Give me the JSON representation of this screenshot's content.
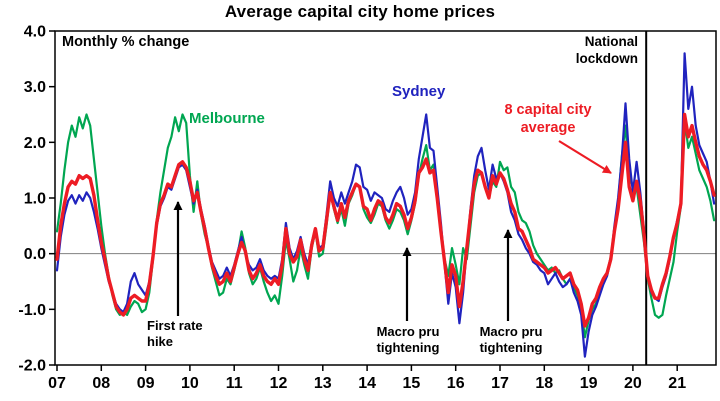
{
  "title": "Average capital city home prices",
  "labels": {
    "monthly_change": "Monthly % change",
    "melbourne": "Melbourne",
    "sydney": "Sydney",
    "eight_cap_line1": "8 capital city",
    "eight_cap_line2": "average",
    "national_lockdown_line1": "National",
    "national_lockdown_line2": "lockdown",
    "first_rate_hike_line1": "First rate",
    "first_rate_hike_line2": "hike",
    "macro_pru_line1": "Macro pru",
    "macro_pru_line2": "tightening"
  },
  "chart_data": {
    "type": "line",
    "title": "Average capital city home prices",
    "ylabel_note": "Monthly % change",
    "ylim": [
      -2.0,
      4.0
    ],
    "y_tick_labels": [
      "4.0",
      "3.0",
      "2.0",
      "1.0",
      "0.0",
      "-1.0",
      "-2.0"
    ],
    "x_tick_labels": [
      "07",
      "08",
      "09",
      "10",
      "11",
      "12",
      "13",
      "14",
      "15",
      "16",
      "17",
      "18",
      "19",
      "20",
      "21"
    ],
    "x_frequency": "monthly",
    "x_start": "2007-01",
    "x_end": "2021-11",
    "grid": "zero-line-only",
    "colors": {
      "melbourne": "#00A651",
      "sydney": "#2023BE",
      "eight_cap": "#ED1C24",
      "axis": "#000000",
      "zero_line": "#808080"
    },
    "annotations": [
      {
        "text": "National lockdown",
        "type": "vertical-line",
        "x_year": 2020.3
      },
      {
        "text": "First rate hike",
        "type": "arrow-up",
        "x_year": 2009.75,
        "points_to_value": 1.1
      },
      {
        "text": "Macro pru tightening",
        "type": "arrow-up",
        "x_year": 2014.9,
        "points_to_value": 0.25
      },
      {
        "text": "Macro pru tightening",
        "type": "arrow-up",
        "x_year": 2017.2,
        "points_to_value": 0.55
      },
      {
        "text": "8 capital city average",
        "type": "arrow-to-line",
        "x_year": 2019.6
      }
    ],
    "series": [
      {
        "name": "Melbourne",
        "color": "#00A651",
        "width": 2.2,
        "values": [
          0.4,
          0.9,
          1.5,
          2.0,
          2.3,
          2.1,
          2.45,
          2.25,
          2.5,
          2.3,
          1.7,
          1.1,
          0.5,
          0.0,
          -0.4,
          -0.75,
          -1.0,
          -1.1,
          -1.05,
          -1.1,
          -0.95,
          -0.85,
          -0.9,
          -1.05,
          -1.0,
          -0.7,
          -0.1,
          0.6,
          1.1,
          1.5,
          1.9,
          2.1,
          2.45,
          2.2,
          2.5,
          2.35,
          1.4,
          0.75,
          1.3,
          0.7,
          0.35,
          0.1,
          -0.25,
          -0.5,
          -0.75,
          -0.7,
          -0.45,
          -0.55,
          -0.3,
          0.0,
          0.4,
          0.1,
          -0.35,
          -0.55,
          -0.45,
          -0.25,
          -0.5,
          -0.7,
          -0.85,
          -0.75,
          -0.9,
          -0.4,
          0.25,
          -0.1,
          -0.5,
          -0.3,
          0.1,
          -0.2,
          -0.45,
          0.1,
          0.4,
          -0.05,
          0.0,
          0.5,
          1.1,
          0.8,
          0.55,
          0.8,
          0.5,
          0.9,
          1.05,
          1.25,
          1.2,
          0.8,
          0.65,
          0.55,
          0.7,
          0.9,
          0.85,
          0.6,
          0.45,
          0.6,
          0.8,
          0.75,
          0.6,
          0.35,
          0.6,
          0.9,
          1.4,
          1.7,
          1.95,
          1.5,
          1.6,
          1.05,
          0.45,
          -0.1,
          -0.4,
          0.1,
          -0.2,
          -0.55,
          0.1,
          -0.1,
          0.5,
          1.1,
          1.4,
          1.45,
          1.2,
          1.0,
          1.3,
          1.2,
          1.65,
          1.5,
          1.55,
          1.2,
          1.1,
          0.75,
          0.6,
          0.55,
          0.4,
          0.15,
          0.0,
          -0.1,
          -0.2,
          -0.3,
          -0.25,
          -0.35,
          -0.3,
          -0.45,
          -0.55,
          -0.45,
          -0.6,
          -0.75,
          -1.0,
          -1.5,
          -1.2,
          -1.0,
          -0.9,
          -0.65,
          -0.5,
          -0.35,
          -0.05,
          0.4,
          0.9,
          1.75,
          2.3,
          1.4,
          1.2,
          1.2,
          0.7,
          0.2,
          -0.45,
          -0.8,
          -1.1,
          -1.15,
          -1.1,
          -0.75,
          -0.45,
          -0.15,
          0.4,
          0.85,
          2.4,
          1.9,
          2.1,
          1.8,
          1.5,
          1.35,
          1.2,
          0.95,
          0.6
        ]
      },
      {
        "name": "Sydney",
        "color": "#2023BE",
        "width": 2.2,
        "values": [
          -0.3,
          0.3,
          0.7,
          0.95,
          1.05,
          0.9,
          1.05,
          0.95,
          1.1,
          1.0,
          0.75,
          0.45,
          0.1,
          -0.2,
          -0.5,
          -0.7,
          -0.9,
          -1.0,
          -1.05,
          -0.9,
          -0.5,
          -0.35,
          -0.55,
          -0.65,
          -0.75,
          -0.5,
          0.0,
          0.5,
          0.85,
          1.0,
          1.2,
          1.15,
          1.35,
          1.55,
          1.6,
          1.5,
          1.2,
          0.9,
          1.15,
          0.8,
          0.5,
          0.15,
          -0.15,
          -0.3,
          -0.45,
          -0.4,
          -0.25,
          -0.4,
          -0.2,
          0.05,
          0.3,
          0.0,
          -0.2,
          -0.3,
          -0.25,
          -0.1,
          -0.3,
          -0.4,
          -0.45,
          -0.4,
          -0.45,
          -0.1,
          0.55,
          0.1,
          -0.1,
          0.05,
          0.3,
          0.0,
          -0.2,
          0.2,
          0.45,
          0.1,
          0.15,
          0.7,
          1.3,
          1.0,
          0.85,
          1.1,
          0.9,
          1.1,
          1.3,
          1.6,
          1.55,
          1.2,
          1.15,
          0.95,
          1.1,
          1.05,
          1.0,
          0.8,
          0.75,
          0.95,
          1.1,
          1.2,
          1.0,
          0.7,
          0.8,
          1.1,
          1.7,
          2.1,
          2.5,
          1.9,
          1.85,
          1.2,
          0.55,
          -0.2,
          -0.9,
          -0.35,
          -0.6,
          -1.25,
          -0.7,
          0.1,
          0.8,
          1.4,
          1.75,
          1.9,
          1.5,
          1.15,
          1.6,
          1.35,
          1.45,
          1.3,
          1.1,
          0.75,
          0.6,
          0.35,
          0.25,
          0.1,
          0.0,
          -0.15,
          -0.2,
          -0.3,
          -0.35,
          -0.55,
          -0.45,
          -0.35,
          -0.5,
          -0.6,
          -0.55,
          -0.45,
          -0.7,
          -0.85,
          -1.1,
          -1.85,
          -1.4,
          -1.1,
          -0.95,
          -0.75,
          -0.55,
          -0.4,
          -0.1,
          0.5,
          1.0,
          1.7,
          2.7,
          1.7,
          1.1,
          1.65,
          1.1,
          0.4,
          -0.4,
          -0.7,
          -0.8,
          -0.85,
          -0.6,
          -0.4,
          -0.1,
          0.3,
          0.6,
          0.9,
          3.6,
          2.6,
          3.0,
          2.3,
          1.95,
          1.8,
          1.65,
          1.3,
          0.9
        ]
      },
      {
        "name": "8 capital city average",
        "color": "#ED1C24",
        "width": 3.4,
        "values": [
          -0.1,
          0.5,
          0.9,
          1.2,
          1.3,
          1.25,
          1.4,
          1.35,
          1.4,
          1.35,
          1.05,
          0.6,
          0.2,
          -0.1,
          -0.45,
          -0.7,
          -0.95,
          -1.05,
          -1.1,
          -1.0,
          -0.8,
          -0.75,
          -0.8,
          -0.85,
          -0.85,
          -0.55,
          -0.05,
          0.55,
          0.9,
          1.05,
          1.25,
          1.2,
          1.4,
          1.6,
          1.65,
          1.55,
          1.3,
          0.95,
          1.1,
          0.75,
          0.45,
          0.1,
          -0.2,
          -0.4,
          -0.55,
          -0.5,
          -0.35,
          -0.5,
          -0.25,
          0.0,
          0.2,
          0.05,
          -0.3,
          -0.45,
          -0.35,
          -0.2,
          -0.4,
          -0.5,
          -0.55,
          -0.45,
          -0.55,
          -0.2,
          0.45,
          0.0,
          -0.15,
          -0.05,
          0.25,
          -0.1,
          -0.3,
          0.15,
          0.45,
          0.05,
          0.1,
          0.6,
          1.1,
          0.85,
          0.6,
          0.9,
          0.65,
          0.95,
          1.1,
          1.25,
          1.2,
          0.85,
          0.8,
          0.6,
          0.8,
          0.95,
          0.9,
          0.65,
          0.55,
          0.7,
          0.9,
          0.85,
          0.7,
          0.45,
          0.65,
          0.95,
          1.45,
          1.55,
          1.7,
          1.45,
          1.5,
          1.0,
          0.4,
          -0.15,
          -0.7,
          -0.2,
          -0.4,
          -0.95,
          -0.5,
          0.1,
          0.7,
          1.25,
          1.5,
          1.45,
          1.2,
          1.0,
          1.4,
          1.25,
          1.45,
          1.35,
          1.15,
          0.9,
          0.75,
          0.45,
          0.4,
          0.25,
          0.1,
          -0.1,
          -0.15,
          -0.2,
          -0.25,
          -0.35,
          -0.3,
          -0.25,
          -0.35,
          -0.45,
          -0.4,
          -0.35,
          -0.55,
          -0.65,
          -0.9,
          -1.3,
          -1.15,
          -0.9,
          -0.8,
          -0.6,
          -0.45,
          -0.35,
          -0.1,
          0.4,
          0.8,
          1.4,
          2.0,
          1.2,
          0.95,
          1.3,
          0.95,
          0.35,
          -0.4,
          -0.65,
          -0.8,
          -0.8,
          -0.55,
          -0.35,
          -0.05,
          0.3,
          0.55,
          0.9,
          2.5,
          2.1,
          2.3,
          2.0,
          1.75,
          1.6,
          1.5,
          1.3,
          1.05
        ]
      }
    ]
  }
}
